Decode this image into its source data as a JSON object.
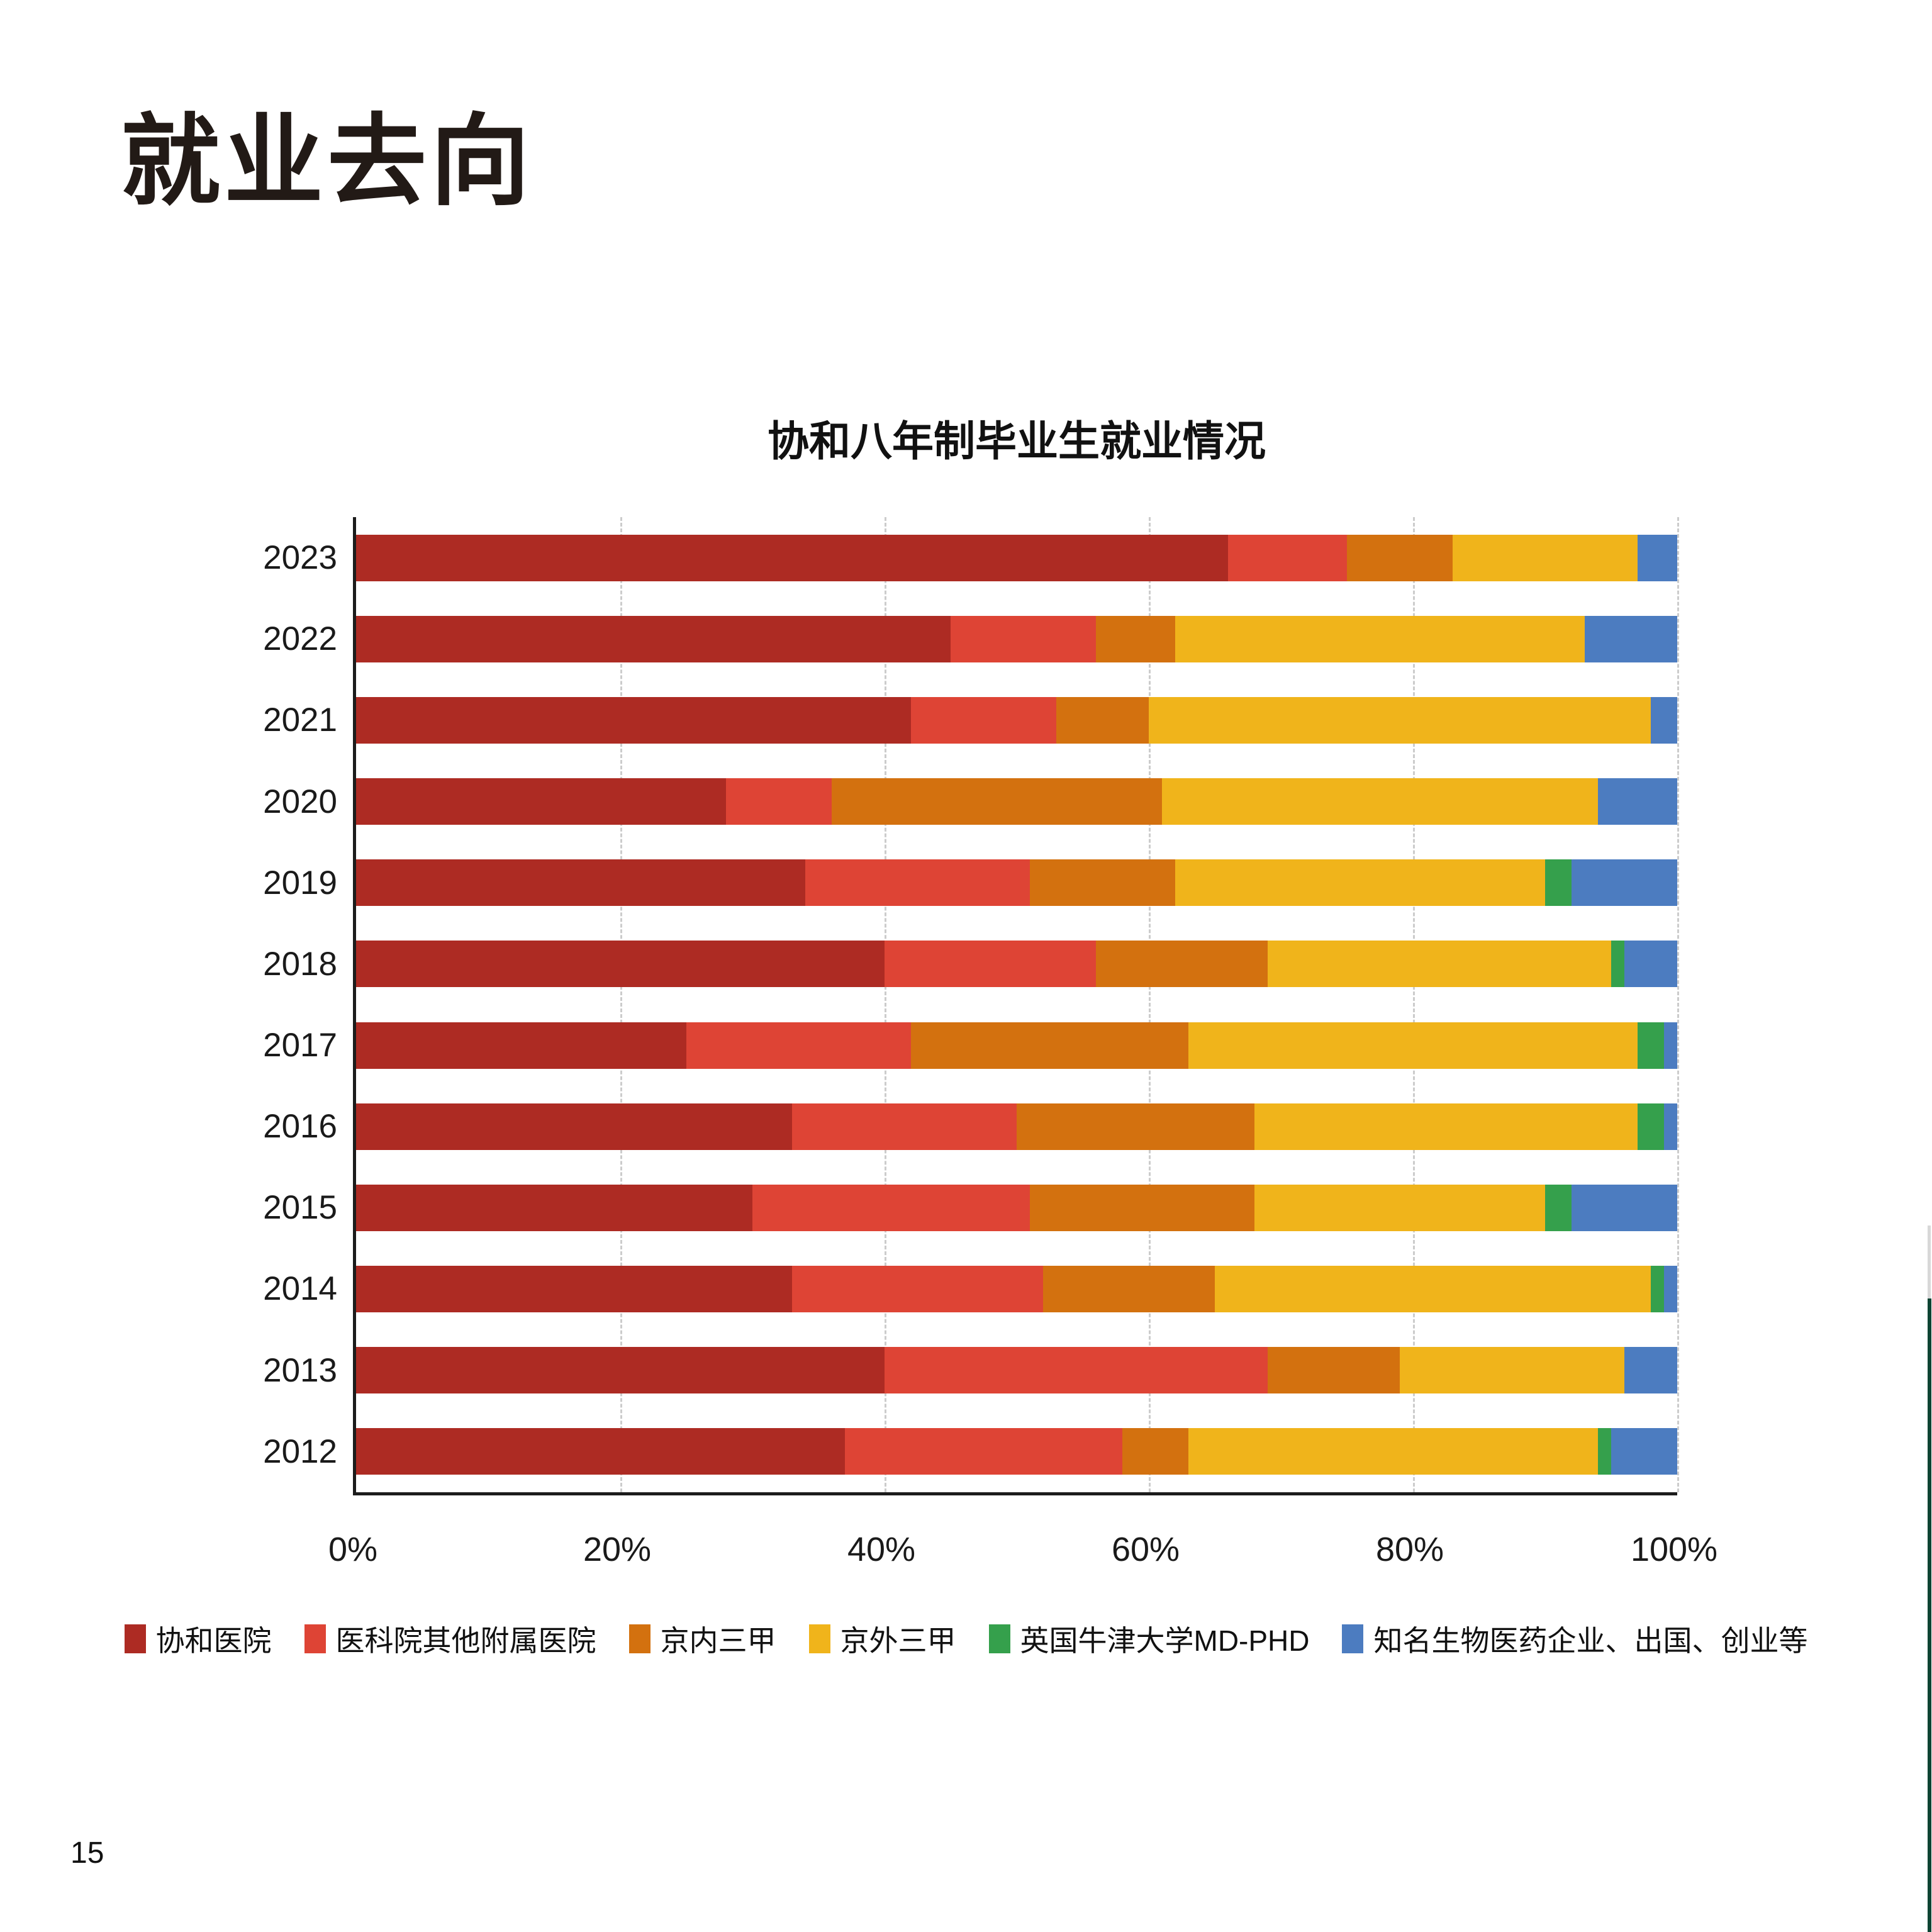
{
  "page": {
    "heading": "就业去向",
    "page_number": "15"
  },
  "chart": {
    "title": "协和八年制毕业生就业情况"
  },
  "chart_data": {
    "type": "bar",
    "orientation": "horizontal",
    "stacked": true,
    "title": "协和八年制毕业生就业情况",
    "unit": "percent",
    "categories": [
      "2023",
      "2022",
      "2021",
      "2020",
      "2019",
      "2018",
      "2017",
      "2016",
      "2015",
      "2014",
      "2013",
      "2012"
    ],
    "series": [
      {
        "name": "协和医院",
        "color": "#AD2B23",
        "values": [
          66,
          45,
          42,
          28,
          34,
          40,
          25,
          33,
          30,
          33,
          40,
          37
        ]
      },
      {
        "name": "医科院其他附属医院",
        "color": "#DE4435",
        "values": [
          9,
          11,
          11,
          8,
          17,
          16,
          17,
          17,
          21,
          19,
          29,
          21
        ]
      },
      {
        "name": "京内三甲",
        "color": "#D3710F",
        "values": [
          8,
          6,
          7,
          25,
          11,
          13,
          21,
          18,
          17,
          13,
          10,
          5
        ]
      },
      {
        "name": "京外三甲",
        "color": "#F0B41B",
        "values": [
          14,
          31,
          38,
          33,
          28,
          26,
          34,
          29,
          22,
          33,
          17,
          31
        ]
      },
      {
        "name": "英国牛津大学MD-PHD",
        "color": "#35A04C",
        "values": [
          0,
          0,
          0,
          0,
          2,
          1,
          2,
          2,
          2,
          1,
          0,
          1
        ]
      },
      {
        "name": "知名生物医药企业、出国、创业等",
        "color": "#4C7CC0",
        "values": [
          3,
          7,
          2,
          6,
          8,
          4,
          1,
          1,
          8,
          1,
          4,
          5
        ]
      }
    ],
    "x_axis": {
      "range": [
        0,
        100
      ],
      "ticks": [
        "0%",
        "20%",
        "40%",
        "60%",
        "80%",
        "100%"
      ],
      "tick_positions": [
        0,
        20,
        40,
        60,
        80,
        100
      ],
      "gridline_positions": [
        20,
        40,
        60,
        80,
        100
      ],
      "gridlines": "dashed"
    },
    "legend_position": "bottom",
    "colors": {
      "axis": "#1c1c1c",
      "gridline": "#cccccc",
      "edge_accent_green": "#0d4433",
      "edge_accent_gray": "#d8d8d8"
    }
  }
}
